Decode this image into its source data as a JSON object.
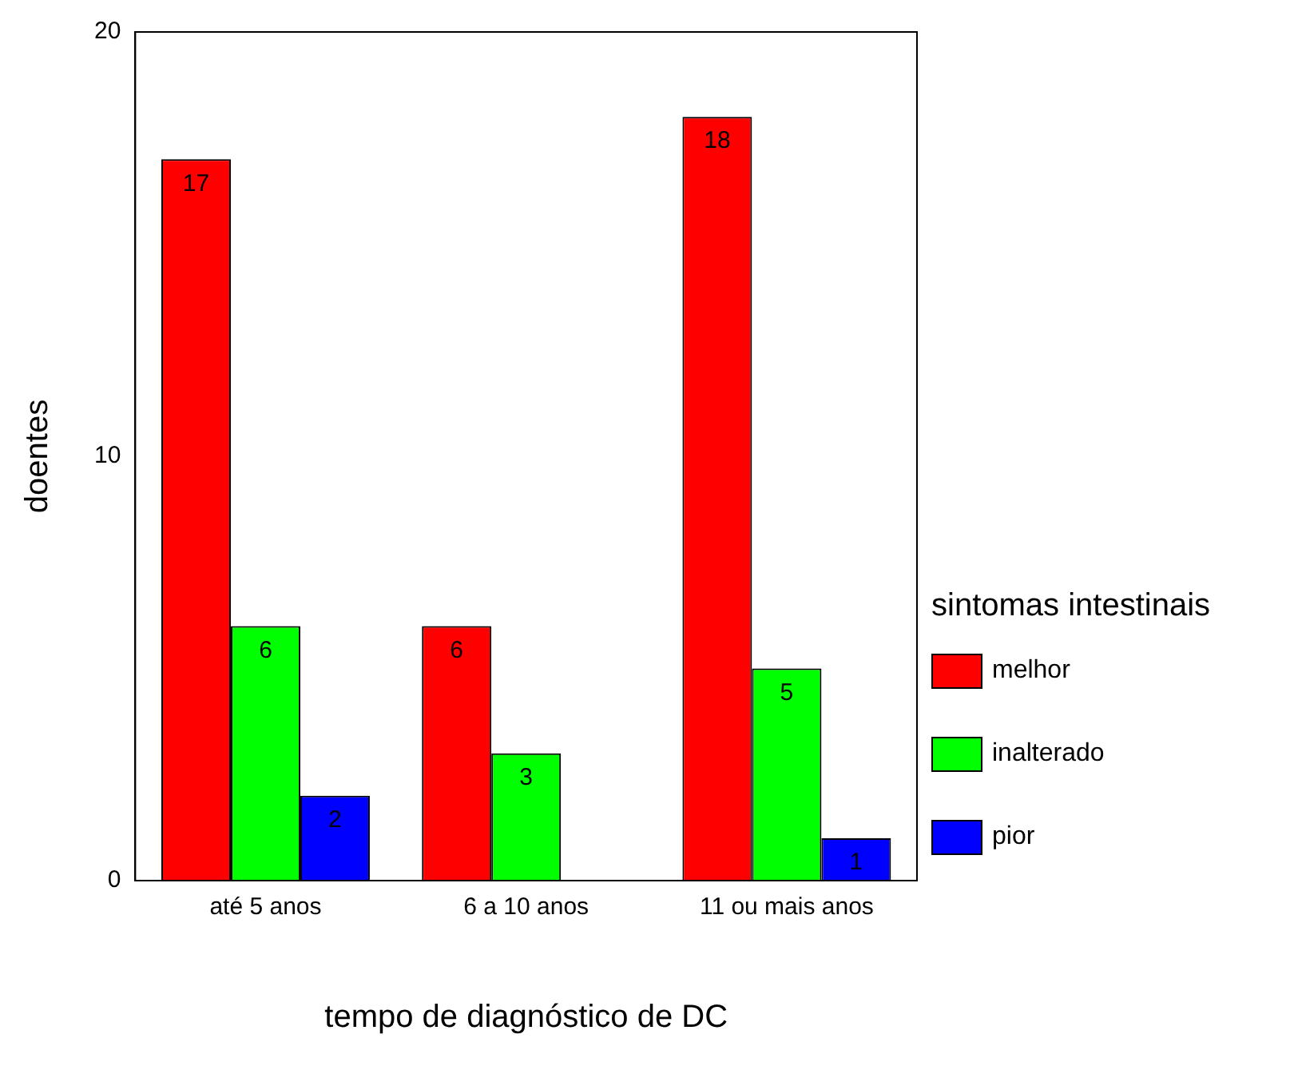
{
  "chart_data": {
    "type": "bar",
    "xlabel": "tempo de diagnóstico de DC",
    "ylabel": "doentes",
    "legend_title": "sintomas intestinais",
    "categories": [
      "até 5 anos",
      "6 a 10 anos",
      "11 ou mais anos"
    ],
    "series": [
      {
        "name": "melhor",
        "color": "#ff0000",
        "values": [
          17,
          6,
          18
        ]
      },
      {
        "name": "inalterado",
        "color": "#00ff00",
        "values": [
          6,
          3,
          5
        ]
      },
      {
        "name": "pior",
        "color": "#0000ff",
        "values": [
          2,
          null,
          1
        ]
      }
    ],
    "ylim": [
      0,
      20
    ],
    "yticks": [
      0,
      10,
      20
    ],
    "grid": false,
    "legend": "right",
    "data_labels": true
  }
}
